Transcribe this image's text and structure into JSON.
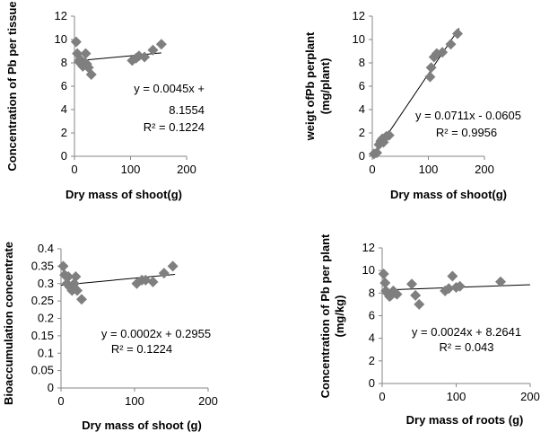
{
  "charts": [
    {
      "chart_data": {
        "type": "scatter",
        "xlabel": "Dry mass of shoot(g)",
        "ylabel": "Concentration of Pb per tissue",
        "xlim": [
          0,
          200
        ],
        "xticks": [
          0,
          100,
          200
        ],
        "ylim": [
          0,
          12
        ],
        "yticks": [
          0,
          2,
          4,
          6,
          8,
          10,
          12
        ],
        "points": [
          [
            3,
            9.8
          ],
          [
            5,
            8.8
          ],
          [
            8,
            8.1
          ],
          [
            10,
            8.3
          ],
          [
            12,
            7.9
          ],
          [
            15,
            7.7
          ],
          [
            18,
            8.0
          ],
          [
            20,
            8.8
          ],
          [
            22,
            7.9
          ],
          [
            25,
            7.6
          ],
          [
            30,
            7.0
          ],
          [
            103,
            8.2
          ],
          [
            110,
            8.4
          ],
          [
            115,
            8.6
          ],
          [
            125,
            8.5
          ],
          [
            140,
            9.1
          ],
          [
            155,
            9.6
          ]
        ],
        "trendline": {
          "slope": 0.0045,
          "intercept": 8.1554,
          "x_range": [
            0,
            155
          ]
        },
        "equation_lines": [
          "y = 0.0045x +",
          "8.1554"
        ],
        "r2_label": "R² = 0.1224",
        "grid": false,
        "marker_color": "#7f7f7f"
      }
    },
    {
      "chart_data": {
        "type": "scatter",
        "xlabel": "Dry mass of shoot(g)",
        "ylabel_lines": [
          "weigt  ofPb perplant",
          "(mg/plant)"
        ],
        "xlim": [
          0,
          200
        ],
        "xticks": [
          0,
          100,
          200
        ],
        "ylim": [
          0,
          12
        ],
        "yticks": [
          0,
          2,
          4,
          6,
          8,
          10,
          12
        ],
        "points": [
          [
            3,
            0.2
          ],
          [
            8,
            0.3
          ],
          [
            12,
            1.0
          ],
          [
            15,
            1.3
          ],
          [
            18,
            1.5
          ],
          [
            20,
            1.2
          ],
          [
            25,
            1.7
          ],
          [
            30,
            1.8
          ],
          [
            103,
            6.8
          ],
          [
            105,
            7.6
          ],
          [
            110,
            8.5
          ],
          [
            115,
            8.8
          ],
          [
            125,
            8.9
          ],
          [
            140,
            9.6
          ],
          [
            152,
            10.5
          ]
        ],
        "trendline": {
          "slope": 0.0711,
          "intercept": -0.0605,
          "x_range": [
            0,
            155
          ]
        },
        "equation_lines": [
          "y = 0.0711x - 0.0605"
        ],
        "r2_label": "R² = 0.9956",
        "grid": false,
        "marker_color": "#7f7f7f"
      }
    },
    {
      "chart_data": {
        "type": "scatter",
        "xlabel": "Dry mass of shoot (g)",
        "ylabel": "Bioaccumulation concentrate",
        "xlim": [
          0,
          200
        ],
        "xticks": [
          0,
          100,
          200
        ],
        "ylim": [
          0,
          0.4
        ],
        "yticks": [
          0,
          0.05,
          0.1,
          0.15,
          0.2,
          0.25,
          0.3,
          0.35,
          0.4
        ],
        "points": [
          [
            3,
            0.35
          ],
          [
            5,
            0.325
          ],
          [
            8,
            0.3
          ],
          [
            10,
            0.32
          ],
          [
            12,
            0.29
          ],
          [
            15,
            0.28
          ],
          [
            18,
            0.3
          ],
          [
            20,
            0.32
          ],
          [
            22,
            0.28
          ],
          [
            28,
            0.255
          ],
          [
            103,
            0.3
          ],
          [
            110,
            0.31
          ],
          [
            115,
            0.31
          ],
          [
            125,
            0.305
          ],
          [
            140,
            0.33
          ],
          [
            152,
            0.35
          ]
        ],
        "trendline": {
          "slope": 0.0002,
          "intercept": 0.2955,
          "x_range": [
            0,
            155
          ]
        },
        "equation_lines": [
          "y = 0.0002x + 0.2955"
        ],
        "r2_label": "R² = 0.1224",
        "grid": false,
        "marker_color": "#7f7f7f"
      }
    },
    {
      "chart_data": {
        "type": "scatter",
        "xlabel": "Dry mass of roots (g)",
        "ylabel_lines": [
          "Concentration of Pb per plant",
          "(mg/kg)"
        ],
        "xlim": [
          0,
          200
        ],
        "xticks": [
          0,
          100,
          200
        ],
        "ylim": [
          0,
          12
        ],
        "yticks": [
          0,
          2,
          4,
          6,
          8,
          10,
          12
        ],
        "points": [
          [
            2,
            9.7
          ],
          [
            4,
            8.9
          ],
          [
            5,
            8.2
          ],
          [
            7,
            8.0
          ],
          [
            10,
            7.7
          ],
          [
            12,
            7.8
          ],
          [
            15,
            8.2
          ],
          [
            18,
            8.0
          ],
          [
            20,
            7.9
          ],
          [
            40,
            8.8
          ],
          [
            45,
            7.8
          ],
          [
            50,
            7.0
          ],
          [
            85,
            8.2
          ],
          [
            90,
            8.4
          ],
          [
            95,
            9.5
          ],
          [
            100,
            8.5
          ],
          [
            105,
            8.6
          ],
          [
            160,
            9.0
          ]
        ],
        "trendline": {
          "slope": 0.0024,
          "intercept": 8.2641,
          "x_range": [
            0,
            200
          ]
        },
        "equation_lines": [
          "y = 0.0024x + 8.2641"
        ],
        "r2_label": "R² = 0.043",
        "grid": false,
        "marker_color": "#7f7f7f"
      }
    }
  ]
}
